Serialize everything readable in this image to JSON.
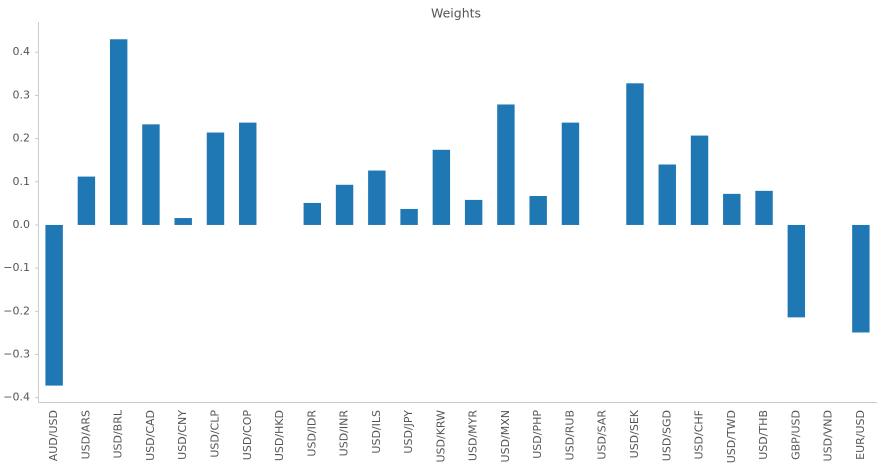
{
  "chart_data": {
    "type": "bar",
    "title": "Weights",
    "categories": [
      "AUD/USD",
      "USD/ARS",
      "USD/BRL",
      "USD/CAD",
      "USD/CNY",
      "USD/CLP",
      "USD/COP",
      "USD/HKD",
      "USD/IDR",
      "USD/INR",
      "USD/ILS",
      "USD/JPY",
      "USD/KRW",
      "USD/MYR",
      "USD/MXN",
      "USD/PHP",
      "USD/RUB",
      "USD/SAR",
      "USD/SEK",
      "USD/SGD",
      "USD/CHF",
      "USD/TWD",
      "USD/THB",
      "GBP/USD",
      "USD/VND",
      "EUR/USD"
    ],
    "values": [
      -0.372,
      0.112,
      0.43,
      0.233,
      0.016,
      0.214,
      0.237,
      0,
      0.051,
      0.093,
      0.126,
      0.037,
      0.174,
      0.058,
      0.279,
      0.067,
      0.237,
      0,
      0.328,
      0.14,
      0.207,
      0.072,
      0.079,
      -0.214,
      0,
      -0.249
    ],
    "color": "#1f77b4",
    "ylim": [
      -0.41,
      0.47
    ],
    "yticks": [
      {
        "value": -0.4,
        "label": "−0.4"
      },
      {
        "value": -0.3,
        "label": "−0.3"
      },
      {
        "value": -0.2,
        "label": "−0.2"
      },
      {
        "value": -0.1,
        "label": "−0.1"
      },
      {
        "value": 0,
        "label": "0.0"
      },
      0.1,
      0.2,
      0.3,
      0.4
    ],
    "grid": false
  }
}
